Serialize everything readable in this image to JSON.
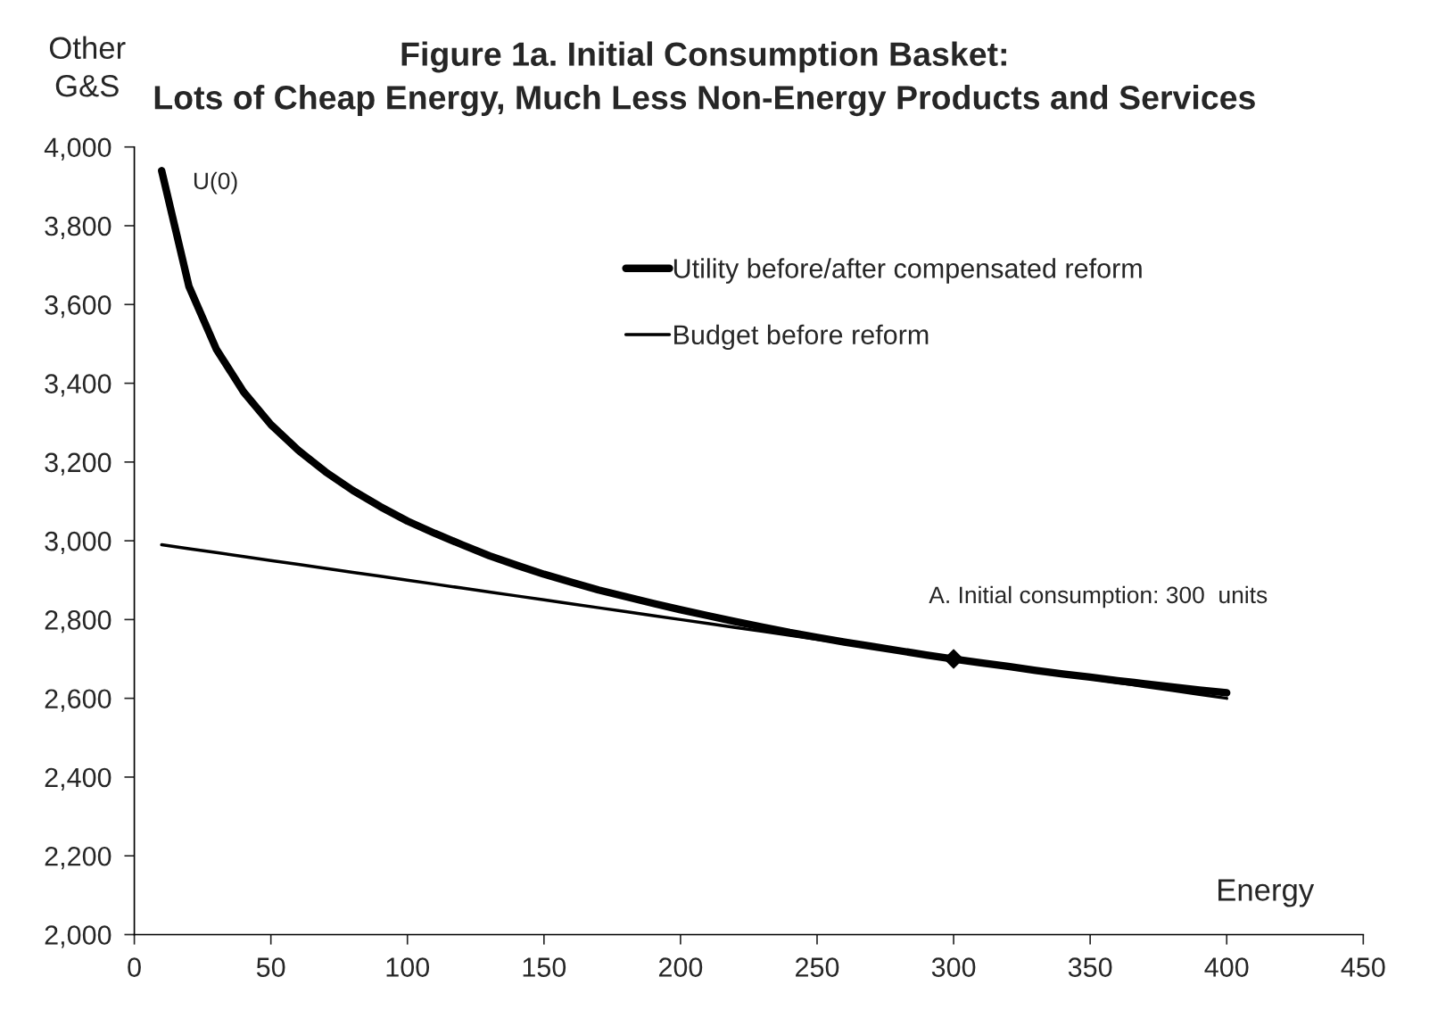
{
  "chart_data": {
    "type": "line",
    "title": "Figure 1a. Initial Consumption Basket:\nLots of Cheap Energy, Much Less Non-Energy Products and Services",
    "xlabel": "Energy",
    "ylabel": "Other\nG&S",
    "x": [
      10,
      20,
      30,
      40,
      50,
      60,
      70,
      80,
      90,
      100,
      110,
      120,
      130,
      140,
      150,
      160,
      170,
      180,
      190,
      200,
      210,
      220,
      230,
      240,
      250,
      260,
      270,
      280,
      290,
      300,
      310,
      320,
      330,
      340,
      350,
      360,
      370,
      380,
      390,
      400
    ],
    "series": [
      {
        "name": "Utility before/after compensated reform",
        "color": "#000000",
        "values": [
          3940,
          3646,
          3487,
          3378,
          3295,
          3230,
          3175,
          3128,
          3087,
          3050,
          3019,
          2990,
          2962,
          2938,
          2915,
          2895,
          2875,
          2858,
          2841,
          2825,
          2810,
          2795,
          2781,
          2767,
          2755,
          2743,
          2732,
          2721,
          2710,
          2700,
          2690,
          2681,
          2671,
          2662,
          2654,
          2645,
          2637,
          2629,
          2621,
          2614
        ]
      },
      {
        "name": "Budget before reform",
        "color": "#000000",
        "values": [
          2990,
          2980,
          2970,
          2960,
          2950,
          2940,
          2930,
          2920,
          2910,
          2900,
          2890,
          2880,
          2870,
          2860,
          2850,
          2840,
          2830,
          2820,
          2810,
          2800,
          2790,
          2780,
          2770,
          2760,
          2750,
          2740,
          2730,
          2720,
          2710,
          2700,
          2690,
          2680,
          2670,
          2660,
          2650,
          2640,
          2630,
          2620,
          2610,
          2600
        ]
      },
      {
        "type": "scatter",
        "marker": "diamond",
        "color": "#000000",
        "x": [
          300
        ],
        "values": [
          2700
        ]
      }
    ],
    "annotations": [
      {
        "text": "U(0)",
        "x": 10,
        "y": 3940
      },
      {
        "text": "A. Initial consumption: 300  units",
        "x": 300,
        "y": 2700
      }
    ],
    "xlim": [
      0,
      450
    ],
    "xticks": [
      0,
      50,
      100,
      150,
      200,
      250,
      300,
      350,
      400,
      450
    ],
    "ylim": [
      2000,
      4000
    ],
    "yticks": [
      {
        "value": 2000,
        "label": "2,000"
      },
      {
        "value": 2200,
        "label": "2,200"
      },
      {
        "value": 2400,
        "label": "2,400"
      },
      {
        "value": 2600,
        "label": "2,600"
      },
      {
        "value": 2800,
        "label": "2,800"
      },
      {
        "value": 3000,
        "label": "3,000"
      },
      {
        "value": 3200,
        "label": "3,200"
      },
      {
        "value": 3400,
        "label": "3,400"
      },
      {
        "value": 3600,
        "label": "3,600"
      },
      {
        "value": 3800,
        "label": "3,800"
      },
      {
        "value": 4000,
        "label": "4,000"
      }
    ],
    "grid": false,
    "legend": "top right"
  }
}
